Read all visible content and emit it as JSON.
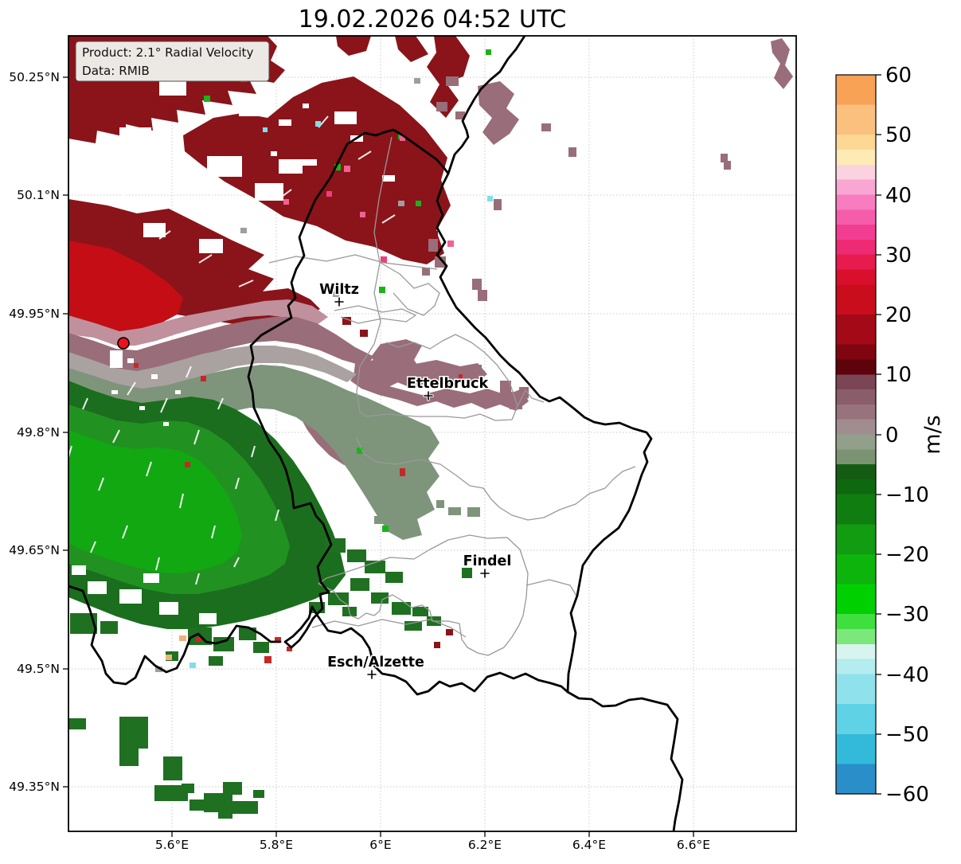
{
  "title": "19.02.2026 04:52 UTC",
  "info_box": {
    "product": "Product: 2.1° Radial Velocity",
    "data_source": "Data: RMIB"
  },
  "axes": {
    "lat_ticks": [
      "50.25°N",
      "50.1°N",
      "49.95°N",
      "49.8°N",
      "49.65°N",
      "49.5°N",
      "49.35°N"
    ],
    "lon_ticks": [
      "5.6°E",
      "5.8°E",
      "6°E",
      "6.2°E",
      "6.4°E",
      "6.6°E"
    ]
  },
  "cities": [
    {
      "name": "Wiltz"
    },
    {
      "name": "Ettelbruck"
    },
    {
      "name": "Findel"
    },
    {
      "name": "Esch/Alzette"
    }
  ],
  "colorbar": {
    "unit": "m/s",
    "min": -60,
    "max": 60,
    "tick_labels": [
      "60",
      "50",
      "40",
      "30",
      "20",
      "10",
      "0",
      "−10",
      "−20",
      "−30",
      "−40",
      "−50",
      "−60"
    ],
    "segments": [
      {
        "from": 60,
        "to": 55,
        "c": "#f8a256"
      },
      {
        "from": 55,
        "to": 50,
        "c": "#fbc07e"
      },
      {
        "from": 50,
        "to": 47.5,
        "c": "#fcd894"
      },
      {
        "from": 47.5,
        "to": 45,
        "c": "#fdeab4"
      },
      {
        "from": 45,
        "to": 42.5,
        "c": "#fbd3e0"
      },
      {
        "from": 42.5,
        "to": 40,
        "c": "#f9a6d2"
      },
      {
        "from": 40,
        "to": 37.5,
        "c": "#f77cc0"
      },
      {
        "from": 37.5,
        "to": 35,
        "c": "#f55dab"
      },
      {
        "from": 35,
        "to": 32.5,
        "c": "#f23e92"
      },
      {
        "from": 32.5,
        "to": 30,
        "c": "#ee2a74"
      },
      {
        "from": 30,
        "to": 27.5,
        "c": "#e71b4e"
      },
      {
        "from": 27.5,
        "to": 25,
        "c": "#da0f2b"
      },
      {
        "from": 25,
        "to": 20,
        "c": "#c90d1d"
      },
      {
        "from": 20,
        "to": 15,
        "c": "#a30917"
      },
      {
        "from": 15,
        "to": 12.5,
        "c": "#7f0511"
      },
      {
        "from": 12.5,
        "to": 10,
        "c": "#5e030c"
      },
      {
        "from": 10,
        "to": 7.5,
        "c": "#7a4656"
      },
      {
        "from": 7.5,
        "to": 5,
        "c": "#8a5d6a"
      },
      {
        "from": 5,
        "to": 2.5,
        "c": "#97737d"
      },
      {
        "from": 2.5,
        "to": 0,
        "c": "#a18c8f"
      },
      {
        "from": 0,
        "to": -2.5,
        "c": "#92a08b"
      },
      {
        "from": -2.5,
        "to": -5,
        "c": "#7b9373"
      },
      {
        "from": -5,
        "to": -7.5,
        "c": "#145c14"
      },
      {
        "from": -7.5,
        "to": -10,
        "c": "#0e690e"
      },
      {
        "from": -10,
        "to": -15,
        "c": "#107d10"
      },
      {
        "from": -15,
        "to": -20,
        "c": "#129c12"
      },
      {
        "from": -20,
        "to": -25,
        "c": "#0cb40c"
      },
      {
        "from": -25,
        "to": -30,
        "c": "#00d000"
      },
      {
        "from": -30,
        "to": -32.5,
        "c": "#40df40"
      },
      {
        "from": -32.5,
        "to": -35,
        "c": "#7ce87c"
      },
      {
        "from": -35,
        "to": -37.5,
        "c": "#d7f5ee"
      },
      {
        "from": -37.5,
        "to": -40,
        "c": "#b4ecef"
      },
      {
        "from": -40,
        "to": -45,
        "c": "#8fe2ec"
      },
      {
        "from": -45,
        "to": -50,
        "c": "#5fd2e6"
      },
      {
        "from": -50,
        "to": -55,
        "c": "#33bada"
      },
      {
        "from": -55,
        "to": -60,
        "c": "#2a8ec8"
      }
    ]
  },
  "colors": {
    "velocity_away_dark_red": "#8a141a",
    "velocity_away_bright_red": "#c40d14",
    "velocity_near_zero_mauve": "#996d79",
    "velocity_near_zero_graygreen": "#7e957c",
    "velocity_toward_dark_green": "#1b6e1d",
    "velocity_toward_bright_green": "#12a812",
    "radar_site_marker": "#e8131b",
    "country_border": "#000000",
    "district_border": "#999999",
    "grid": "#c9c9c9",
    "info_box_bg": "#ece8e4"
  }
}
